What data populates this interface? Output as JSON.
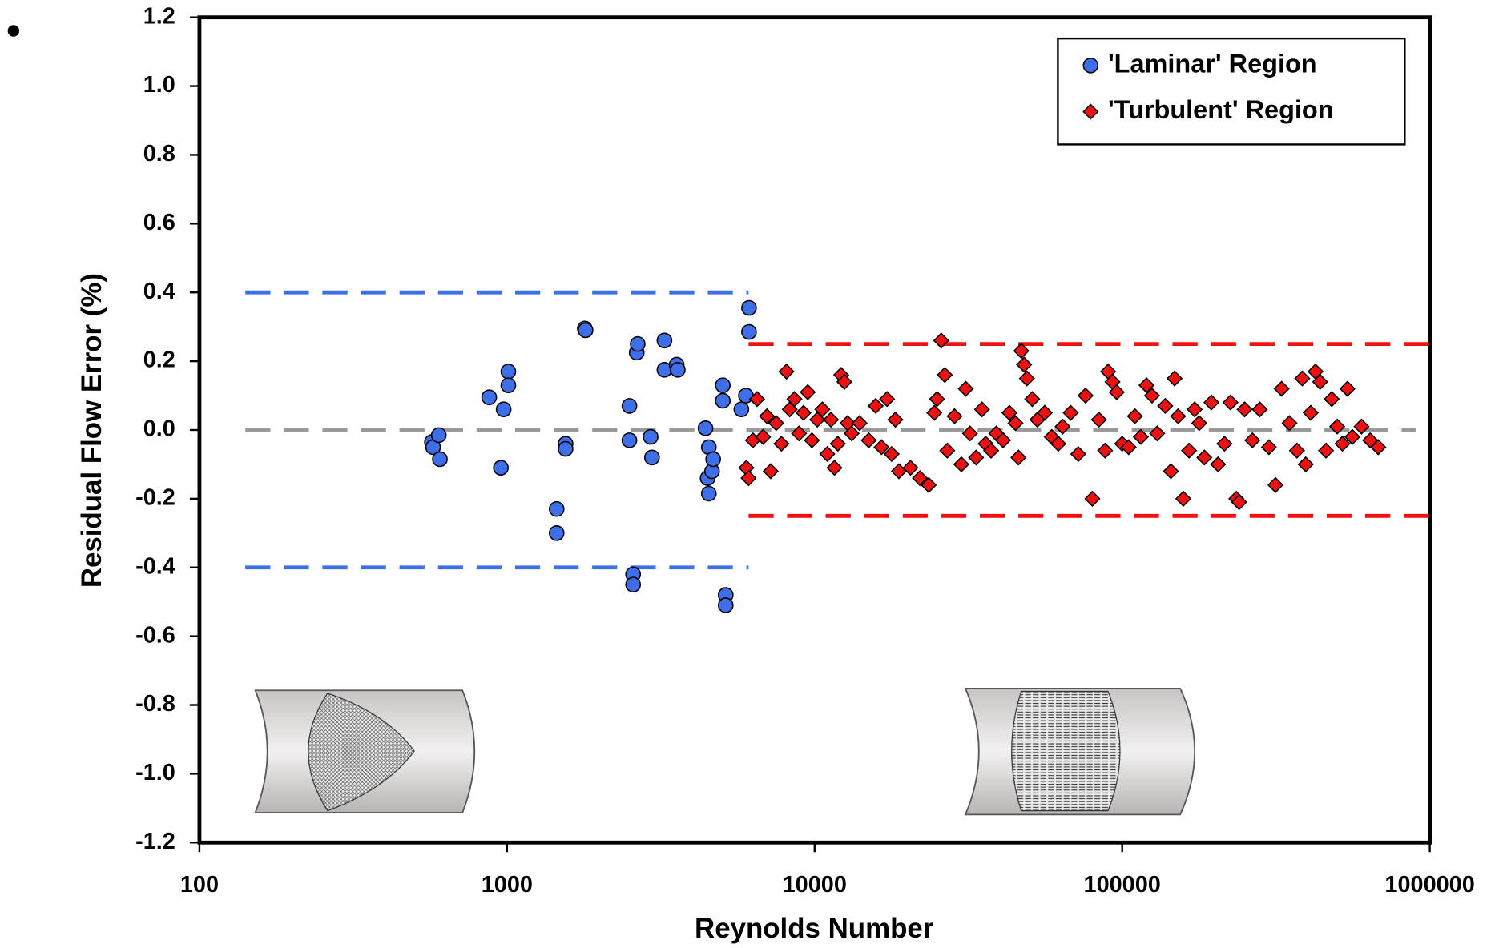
{
  "chart_data": {
    "type": "scatter",
    "x_label": "Reynolds Number",
    "y_label": "Residual Flow Error (%)",
    "xscale": "log",
    "xlim": [
      100,
      1000000
    ],
    "ylim": [
      -1.2,
      1.2
    ],
    "xticks": [
      100,
      1000,
      10000,
      100000,
      1000000
    ],
    "yticks": [
      1.2,
      {
        "value": 1,
        "label": "1.0"
      },
      0.8,
      0.6,
      0.4,
      0.2,
      {
        "value": 0,
        "label": "0.0"
      },
      -0.2,
      -0.4,
      -0.6,
      -0.8,
      {
        "value": -1,
        "label": "-1.0"
      },
      -1.2
    ],
    "legend": "upper right",
    "series": [
      {
        "name": "'Laminar' Region",
        "color": "#3f6fe8",
        "marker": "circle",
        "x": [
          570,
          575,
          600,
          605,
          875,
          955,
          975,
          1010,
          1010,
          1450,
          1450,
          1550,
          1550,
          1790,
          1800,
          2500,
          2500,
          2570,
          2570,
          2640,
          2660,
          2930,
          2960,
          3250,
          3250,
          3560,
          3590,
          4420,
          4490,
          4530,
          4530,
          4640,
          4680,
          5030,
          5030,
          5140,
          5140,
          5780,
          5980,
          6120,
          6120
        ],
        "values": [
          -0.035,
          -0.05,
          -0.015,
          -0.085,
          0.095,
          -0.11,
          0.06,
          0.17,
          0.13,
          -0.23,
          -0.3,
          -0.04,
          -0.055,
          0.295,
          0.29,
          0.07,
          -0.03,
          -0.42,
          -0.45,
          0.225,
          0.25,
          -0.02,
          -0.08,
          0.26,
          0.175,
          0.19,
          0.175,
          0.005,
          -0.14,
          -0.05,
          -0.185,
          -0.12,
          -0.085,
          0.13,
          0.085,
          -0.48,
          -0.51,
          0.06,
          0.1,
          0.355,
          0.285
        ]
      },
      {
        "name": "'Turbulent' Region",
        "color": "#ee1111",
        "marker": "diamond",
        "x": [
          6000,
          6100,
          6300,
          6500,
          6800,
          7000,
          7200,
          7500,
          7800,
          8100,
          8300,
          8600,
          8900,
          9200,
          9500,
          9800,
          10200,
          10600,
          11000,
          11300,
          11600,
          11900,
          12200,
          12500,
          12800,
          13200,
          14000,
          15000,
          15800,
          16500,
          17200,
          17800,
          18300,
          18800,
          20500,
          22000,
          23500,
          24500,
          25000,
          25800,
          26500,
          27000,
          28500,
          30000,
          31000,
          32000,
          33500,
          35000,
          36000,
          37500,
          39000,
          41000,
          43000,
          45000,
          46000,
          47000,
          48000,
          49000,
          51000,
          53000,
          56000,
          59000,
          62000,
          64000,
          68000,
          72000,
          76000,
          80000,
          84000,
          88000,
          90000,
          93000,
          96000,
          100000,
          105000,
          110000,
          115000,
          120000,
          125000,
          130000,
          138000,
          144000,
          148000,
          152000,
          158000,
          165000,
          172000,
          178000,
          185000,
          195000,
          205000,
          215000,
          225000,
          235000,
          240000,
          250000,
          265000,
          280000,
          300000,
          315000,
          330000,
          350000,
          370000,
          385000,
          395000,
          410000,
          425000,
          440000,
          460000,
          480000,
          500000,
          520000,
          540000,
          560000,
          600000,
          640000,
          680000
        ],
        "values": [
          -0.11,
          -0.14,
          -0.03,
          0.09,
          -0.02,
          0.04,
          -0.12,
          0.02,
          -0.04,
          0.17,
          0.06,
          0.09,
          -0.01,
          0.05,
          0.11,
          -0.03,
          0.03,
          0.06,
          -0.07,
          0.03,
          -0.11,
          -0.04,
          0.16,
          0.14,
          0.02,
          -0.01,
          0.02,
          -0.03,
          0.07,
          -0.05,
          0.09,
          -0.07,
          0.03,
          -0.12,
          -0.11,
          -0.14,
          -0.16,
          0.05,
          0.09,
          0.26,
          0.16,
          -0.06,
          0.04,
          -0.1,
          0.12,
          -0.01,
          -0.08,
          0.06,
          -0.04,
          -0.06,
          -0.01,
          -0.03,
          0.05,
          0.02,
          -0.08,
          0.23,
          0.19,
          0.15,
          0.09,
          0.03,
          0.05,
          -0.02,
          -0.04,
          0.01,
          0.05,
          -0.07,
          0.1,
          -0.2,
          0.03,
          -0.06,
          0.17,
          0.14,
          0.11,
          -0.04,
          -0.05,
          0.04,
          -0.02,
          0.13,
          0.1,
          -0.01,
          0.07,
          -0.12,
          0.15,
          0.04,
          -0.2,
          -0.06,
          0.06,
          0.02,
          -0.08,
          0.08,
          -0.1,
          -0.04,
          0.08,
          -0.2,
          -0.21,
          0.06,
          -0.03,
          0.06,
          -0.05,
          -0.16,
          0.12,
          0.02,
          -0.06,
          0.15,
          -0.1,
          0.05,
          0.17,
          0.14,
          -0.06,
          0.09,
          0.01,
          -0.04,
          0.12,
          -0.02,
          0.01,
          -0.03,
          -0.05
        ]
      }
    ],
    "reference_lines": [
      {
        "y": 0.4,
        "x": [
          141,
          6100
        ],
        "color": "#3f6fe8"
      },
      {
        "y": -0.4,
        "x": [
          141,
          6100
        ],
        "color": "#3f6fe8"
      },
      {
        "y": 0.25,
        "x": [
          6100,
          1000000
        ],
        "color": "#ee1111"
      },
      {
        "y": -0.25,
        "x": [
          6100,
          1000000
        ],
        "color": "#ee1111"
      },
      {
        "y": 0,
        "x": [
          141,
          900000
        ],
        "color": "#999999"
      }
    ]
  }
}
